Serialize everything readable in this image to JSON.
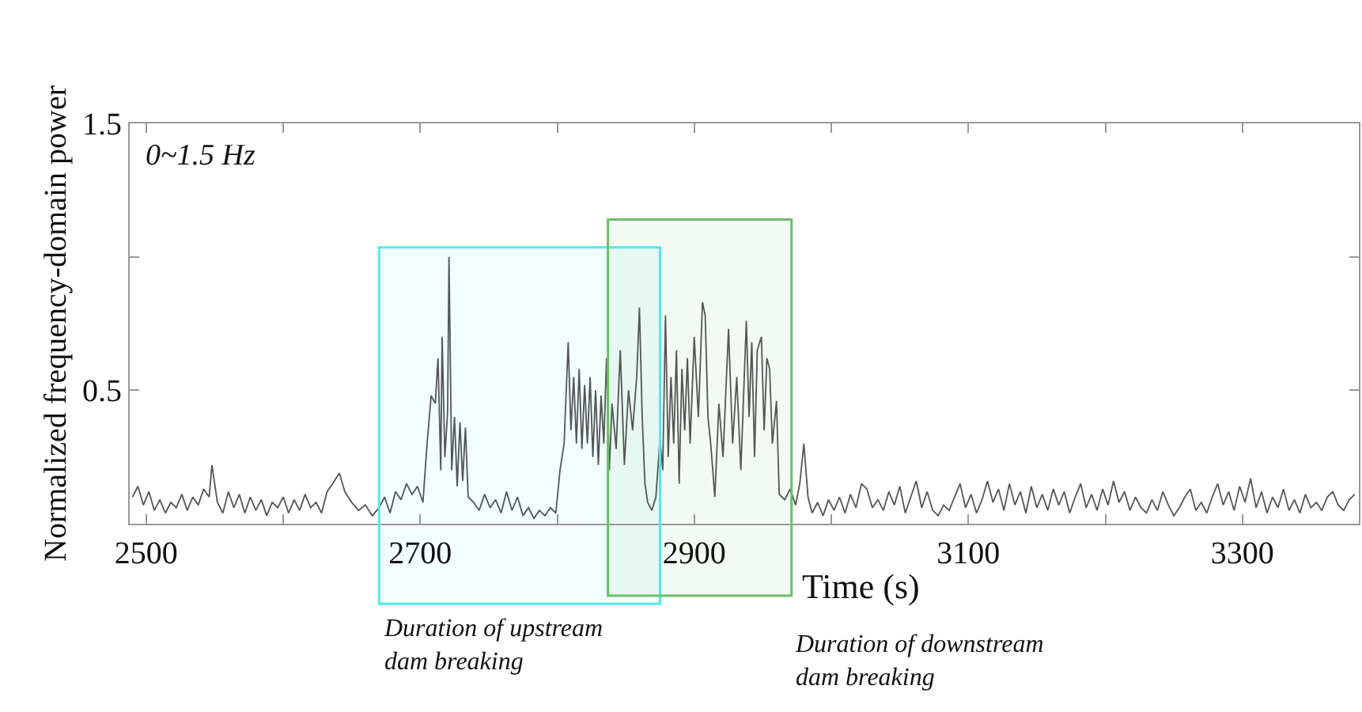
{
  "chart_data": {
    "type": "line",
    "ylabel": "Normalized frequency-domain power",
    "xlabel": "Time (s)",
    "annotations": [
      "0~1.5 Hz"
    ],
    "xlim": [
      2488,
      3385
    ],
    "ylim": [
      0,
      1.5
    ],
    "xticks": [
      2500,
      {
        "value": 2600,
        "label": null
      },
      2700,
      {
        "value": 2800,
        "label": null
      },
      2900,
      {
        "value": 3000,
        "label": null
      },
      3100,
      {
        "value": 3200,
        "label": null
      },
      3300
    ],
    "yticks": [
      0.5,
      {
        "value": 1.0,
        "label": null
      },
      1.5
    ],
    "grid": false,
    "marker": "none",
    "line_style": "solid",
    "bands": [
      {
        "axis": "x",
        "from": 2670,
        "to": 2875,
        "label": "Duration of upstream dam breaking",
        "color": "#55e8ee"
      },
      {
        "axis": "x",
        "from": 2837,
        "to": 2971,
        "label": "Duration of downstream dam breaking",
        "color": "#6cbf6c"
      }
    ],
    "series": [
      {
        "color": "#555555",
        "x": [
          2490,
          2494,
          2498,
          2502,
          2506,
          2510,
          2514,
          2518,
          2522,
          2526,
          2530,
          2534,
          2538,
          2542,
          2546,
          2548,
          2552,
          2556,
          2560,
          2564,
          2568,
          2572,
          2576,
          2580,
          2584,
          2588,
          2592,
          2596,
          2600,
          2604,
          2608,
          2612,
          2616,
          2620,
          2624,
          2628,
          2632,
          2636,
          2641,
          2645,
          2650,
          2655,
          2660,
          2665,
          2670,
          2674,
          2678,
          2682,
          2686,
          2690,
          2694,
          2698,
          2702,
          2705,
          2708,
          2711,
          2713,
          2715,
          2716,
          2718,
          2720,
          2721,
          2723,
          2725,
          2727,
          2729,
          2731,
          2733,
          2735,
          2739,
          2743,
          2747,
          2751,
          2755,
          2759,
          2763,
          2767,
          2771,
          2775,
          2779,
          2783,
          2787,
          2791,
          2795,
          2799,
          2802,
          2805,
          2808,
          2810,
          2812,
          2814,
          2816,
          2818,
          2820,
          2822,
          2824,
          2826,
          2828,
          2830,
          2832,
          2834,
          2836,
          2838,
          2840,
          2843,
          2846,
          2849,
          2852,
          2855,
          2858,
          2860,
          2862,
          2864,
          2866,
          2869,
          2872,
          2875,
          2877,
          2879,
          2881,
          2883,
          2885,
          2887,
          2889,
          2891,
          2893,
          2895,
          2897,
          2900,
          2903,
          2906,
          2908,
          2910,
          2912,
          2915,
          2918,
          2921,
          2925,
          2928,
          2931,
          2934,
          2938,
          2940,
          2942,
          2944,
          2946,
          2949,
          2951,
          2953,
          2955,
          2957,
          2960,
          2962,
          2966,
          2970,
          2974,
          2977,
          2980,
          2983,
          2986,
          2990,
          2994,
          2998,
          3002,
          3006,
          3010,
          3014,
          3018,
          3022,
          3026,
          3030,
          3034,
          3038,
          3042,
          3046,
          3050,
          3054,
          3058,
          3062,
          3066,
          3070,
          3074,
          3078,
          3082,
          3086,
          3090,
          3094,
          3098,
          3102,
          3106,
          3110,
          3114,
          3118,
          3122,
          3126,
          3130,
          3134,
          3138,
          3142,
          3146,
          3150,
          3154,
          3158,
          3162,
          3166,
          3170,
          3174,
          3178,
          3182,
          3186,
          3190,
          3194,
          3198,
          3202,
          3206,
          3210,
          3214,
          3218,
          3222,
          3226,
          3230,
          3234,
          3238,
          3242,
          3246,
          3250,
          3254,
          3258,
          3262,
          3266,
          3270,
          3274,
          3278,
          3282,
          3286,
          3290,
          3294,
          3298,
          3302,
          3306,
          3310,
          3314,
          3318,
          3322,
          3326,
          3330,
          3334,
          3338,
          3342,
          3346,
          3350,
          3354,
          3358,
          3362,
          3366,
          3370,
          3374,
          3378,
          3382
        ],
        "values": [
          0.1,
          0.14,
          0.07,
          0.12,
          0.05,
          0.09,
          0.04,
          0.08,
          0.06,
          0.11,
          0.05,
          0.1,
          0.07,
          0.13,
          0.1,
          0.22,
          0.08,
          0.04,
          0.12,
          0.06,
          0.11,
          0.04,
          0.1,
          0.05,
          0.09,
          0.03,
          0.08,
          0.06,
          0.1,
          0.04,
          0.09,
          0.05,
          0.11,
          0.06,
          0.08,
          0.04,
          0.12,
          0.15,
          0.19,
          0.12,
          0.08,
          0.05,
          0.07,
          0.03,
          0.06,
          0.1,
          0.04,
          0.12,
          0.09,
          0.15,
          0.11,
          0.14,
          0.08,
          0.3,
          0.48,
          0.45,
          0.62,
          0.2,
          0.7,
          0.25,
          0.42,
          1.0,
          0.2,
          0.4,
          0.14,
          0.38,
          0.16,
          0.36,
          0.1,
          0.08,
          0.05,
          0.11,
          0.06,
          0.09,
          0.04,
          0.12,
          0.05,
          0.1,
          0.03,
          0.06,
          0.02,
          0.05,
          0.03,
          0.06,
          0.04,
          0.2,
          0.3,
          0.68,
          0.35,
          0.55,
          0.3,
          0.58,
          0.28,
          0.52,
          0.3,
          0.55,
          0.25,
          0.5,
          0.22,
          0.48,
          0.3,
          0.62,
          0.2,
          0.45,
          0.28,
          0.65,
          0.22,
          0.5,
          0.35,
          0.55,
          0.81,
          0.4,
          0.15,
          0.08,
          0.05,
          0.1,
          0.32,
          0.2,
          0.78,
          0.25,
          0.55,
          0.3,
          0.65,
          0.15,
          0.58,
          0.35,
          0.62,
          0.3,
          0.7,
          0.4,
          0.83,
          0.78,
          0.4,
          0.3,
          0.1,
          0.45,
          0.25,
          0.73,
          0.3,
          0.55,
          0.2,
          0.76,
          0.4,
          0.68,
          0.25,
          0.65,
          0.7,
          0.35,
          0.62,
          0.58,
          0.3,
          0.46,
          0.11,
          0.09,
          0.13,
          0.07,
          0.15,
          0.3,
          0.1,
          0.04,
          0.08,
          0.03,
          0.09,
          0.05,
          0.1,
          0.04,
          0.11,
          0.06,
          0.15,
          0.13,
          0.06,
          0.09,
          0.05,
          0.12,
          0.07,
          0.14,
          0.04,
          0.1,
          0.16,
          0.06,
          0.12,
          0.05,
          0.03,
          0.07,
          0.05,
          0.1,
          0.15,
          0.06,
          0.11,
          0.04,
          0.09,
          0.16,
          0.08,
          0.13,
          0.05,
          0.15,
          0.07,
          0.12,
          0.04,
          0.14,
          0.06,
          0.11,
          0.05,
          0.13,
          0.07,
          0.12,
          0.04,
          0.1,
          0.15,
          0.06,
          0.11,
          0.05,
          0.13,
          0.07,
          0.16,
          0.08,
          0.12,
          0.05,
          0.1,
          0.06,
          0.04,
          0.09,
          0.05,
          0.12,
          0.07,
          0.03,
          0.06,
          0.1,
          0.13,
          0.05,
          0.08,
          0.04,
          0.1,
          0.15,
          0.07,
          0.12,
          0.05,
          0.14,
          0.08,
          0.17,
          0.06,
          0.12,
          0.04,
          0.1,
          0.06,
          0.13,
          0.05,
          0.09,
          0.04,
          0.11,
          0.06,
          0.08,
          0.05,
          0.1,
          0.12,
          0.07,
          0.05,
          0.09,
          0.11
        ]
      }
    ]
  }
}
